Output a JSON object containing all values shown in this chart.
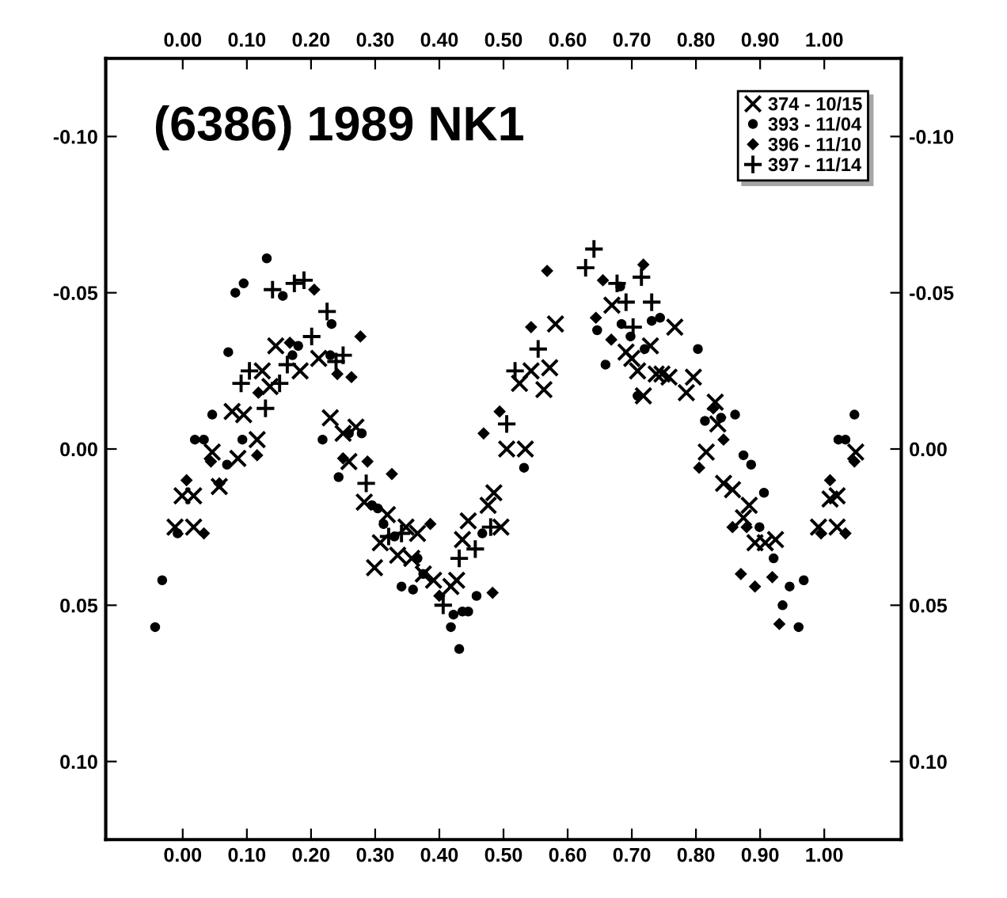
{
  "chart_data": {
    "type": "scatter",
    "title": "(6386) 1989 NK1",
    "xlim": [
      -0.12,
      1.12
    ],
    "ylim": [
      0.125,
      -0.125
    ],
    "xticks": [
      {
        "value": 0,
        "label": "0.00"
      },
      {
        "value": 0.1,
        "label": "0.10"
      },
      {
        "value": 0.2,
        "label": "0.20"
      },
      {
        "value": 0.3,
        "label": "0.30"
      },
      {
        "value": 0.4,
        "label": "0.40"
      },
      {
        "value": 0.5,
        "label": "0.50"
      },
      {
        "value": 0.6,
        "label": "0.60"
      },
      {
        "value": 0.7,
        "label": "0.70"
      },
      {
        "value": 0.8,
        "label": "0.80"
      },
      {
        "value": 0.9,
        "label": "0.90"
      },
      {
        "value": 1,
        "label": "1.00"
      }
    ],
    "x2lim": [
      -0.12,
      1.12
    ],
    "x2ticks": [
      {
        "value": 0,
        "label": "0.00"
      },
      {
        "value": 0.1,
        "label": "0.10"
      },
      {
        "value": 0.2,
        "label": "0.20"
      },
      {
        "value": 0.3,
        "label": "0.30"
      },
      {
        "value": 0.4,
        "label": "0.40"
      },
      {
        "value": 0.5,
        "label": "0.50"
      },
      {
        "value": 0.6,
        "label": "0.60"
      },
      {
        "value": 0.7,
        "label": "0.70"
      },
      {
        "value": 0.8,
        "label": "0.80"
      },
      {
        "value": 0.9,
        "label": "0.90"
      },
      {
        "value": 1,
        "label": "1.00"
      }
    ],
    "yticks": [
      {
        "value": -0.1,
        "label": "-0.10"
      },
      {
        "value": -0.05,
        "label": "-0.05"
      },
      {
        "value": 0,
        "label": "0.00"
      },
      {
        "value": 0.05,
        "label": "0.05"
      },
      {
        "value": 0.1,
        "label": "0.10"
      }
    ],
    "y2lim": [
      0.125,
      -0.125
    ],
    "y2ticks": [
      {
        "value": -0.1,
        "label": "-0.10"
      },
      {
        "value": -0.05,
        "label": "-0.05"
      },
      {
        "value": 0,
        "label": "0.00"
      },
      {
        "value": 0.05,
        "label": "0.05"
      },
      {
        "value": 0.1,
        "label": "0.10"
      }
    ],
    "grid": false,
    "legend": "top right",
    "series": [
      {
        "name": "374 - 10/15",
        "color": "#000000",
        "marker": "cross",
        "x": [
          -0.012,
          0.017,
          -0.001,
          0.017,
          0.046,
          0.057,
          0.086,
          0.077,
          0.095,
          0.116,
          0.124,
          0.136,
          0.145,
          0.183,
          0.212,
          0.23,
          0.25,
          0.259,
          0.27,
          0.283,
          0.308,
          0.319,
          0.299,
          0.335,
          0.348,
          0.366,
          0.357,
          0.375,
          0.391,
          0.418,
          0.427,
          0.436,
          0.445,
          0.476,
          0.485,
          0.496,
          0.505,
          0.534,
          0.525,
          0.543,
          0.563,
          0.572,
          0.581,
          0.669,
          0.691,
          0.7,
          0.709,
          0.718,
          0.729,
          0.738,
          0.747,
          0.758,
          0.767,
          0.785,
          0.796,
          0.816,
          0.83,
          0.834,
          0.843,
          0.857,
          0.874,
          0.883,
          0.892,
          0.908,
          0.924,
          0.991,
          1.009,
          1.02,
          1.02,
          1.049
        ],
        "values": [
          0.025,
          0.025,
          0.015,
          0.015,
          0.001,
          0.012,
          0.003,
          -0.012,
          -0.011,
          -0.003,
          -0.025,
          -0.02,
          -0.033,
          -0.025,
          -0.029,
          -0.01,
          -0.005,
          0.004,
          -0.007,
          0.017,
          0.03,
          0.021,
          0.038,
          0.034,
          0.025,
          0.027,
          0.035,
          0.04,
          0.042,
          0.044,
          0.042,
          0.029,
          0.023,
          0.018,
          0.014,
          0.025,
          0.0,
          0.0,
          -0.021,
          -0.025,
          -0.019,
          -0.026,
          -0.04,
          -0.046,
          -0.031,
          -0.029,
          -0.025,
          -0.017,
          -0.033,
          -0.024,
          -0.024,
          -0.023,
          -0.039,
          -0.018,
          -0.023,
          0.001,
          -0.015,
          -0.008,
          0.011,
          0.013,
          0.022,
          0.018,
          0.03,
          0.03,
          0.029,
          0.025,
          0.016,
          0.015,
          0.025,
          0.001
        ]
      },
      {
        "name": "393 - 11/04",
        "color": "#000000",
        "marker": "circle",
        "x": [
          -0.043,
          -0.032,
          -0.008,
          0.019,
          0.033,
          0.046,
          0.069,
          0.071,
          0.093,
          0.082,
          0.095,
          0.131,
          0.156,
          0.18,
          0.171,
          0.218,
          0.23,
          0.232,
          0.259,
          0.243,
          0.279,
          0.295,
          0.304,
          0.313,
          0.33,
          0.366,
          0.341,
          0.359,
          0.375,
          0.418,
          0.422,
          0.436,
          0.445,
          0.431,
          0.458,
          0.467,
          0.532,
          0.682,
          0.646,
          0.684,
          0.698,
          0.731,
          0.744,
          0.659,
          0.72,
          0.803,
          0.709,
          0.839,
          0.814,
          0.861,
          0.874,
          0.886,
          0.906,
          0.899,
          0.921,
          0.946,
          0.968,
          0.935,
          0.96,
          1.022,
          1.033,
          1.047
        ],
        "values": [
          0.057,
          0.042,
          0.027,
          -0.003,
          -0.003,
          -0.011,
          0.005,
          -0.031,
          -0.003,
          -0.05,
          -0.053,
          -0.061,
          -0.049,
          -0.033,
          -0.03,
          -0.003,
          -0.03,
          -0.04,
          -0.005,
          0.009,
          -0.005,
          0.018,
          0.019,
          0.024,
          0.028,
          0.035,
          0.044,
          0.045,
          0.04,
          0.057,
          0.053,
          0.052,
          0.052,
          0.064,
          0.047,
          0.027,
          0.006,
          -0.052,
          -0.038,
          -0.04,
          -0.036,
          -0.041,
          -0.042,
          -0.027,
          -0.032,
          -0.032,
          -0.017,
          -0.01,
          -0.009,
          -0.011,
          0.002,
          0.005,
          0.014,
          0.025,
          0.035,
          0.044,
          0.042,
          0.05,
          0.057,
          -0.003,
          -0.003,
          -0.011
        ]
      },
      {
        "name": "396 - 11/10",
        "color": "#000000",
        "marker": "diamond",
        "x": [
          0.033,
          0.006,
          0.044,
          0.057,
          0.116,
          0.118,
          0.167,
          0.205,
          0.241,
          0.25,
          0.263,
          0.277,
          0.288,
          0.326,
          0.386,
          0.4,
          0.483,
          0.469,
          0.494,
          0.543,
          0.554,
          0.568,
          0.655,
          0.718,
          0.644,
          0.668,
          0.827,
          0.843,
          0.805,
          0.857,
          0.879,
          0.87,
          0.892,
          0.919,
          0.93,
          0.995,
          1.033,
          1.009,
          1.047
        ],
        "values": [
          0.027,
          0.01,
          0.004,
          0.011,
          0.002,
          -0.018,
          -0.034,
          -0.051,
          -0.024,
          0.003,
          -0.023,
          -0.036,
          0.004,
          0.008,
          0.024,
          0.047,
          0.046,
          -0.005,
          -0.012,
          -0.039,
          null,
          -0.057,
          -0.054,
          -0.059,
          -0.042,
          -0.035,
          -0.013,
          -0.003,
          0.006,
          0.025,
          0.025,
          0.04,
          0.044,
          0.041,
          0.056,
          0.027,
          0.027,
          0.01,
          0.004
        ]
      },
      {
        "name": "397 - 11/14",
        "color": "#000000",
        "marker": "plus",
        "x": [
          0.091,
          0.104,
          0.129,
          0.14,
          0.151,
          0.163,
          0.174,
          0.189,
          0.201,
          0.225,
          0.239,
          0.25,
          0.286,
          0.321,
          0.341,
          0.406,
          0.431,
          0.456,
          0.48,
          0.505,
          0.518,
          0.554,
          0.641,
          0.628,
          0.677,
          0.715,
          0.691,
          0.731,
          0.702
        ],
        "values": [
          -0.021,
          -0.025,
          -0.013,
          -0.051,
          -0.021,
          -0.027,
          -0.053,
          -0.054,
          -0.036,
          -0.044,
          -0.028,
          -0.03,
          0.011,
          0.028,
          0.027,
          0.05,
          0.035,
          0.032,
          0.025,
          -0.008,
          -0.025,
          -0.032,
          -0.064,
          -0.058,
          -0.053,
          -0.055,
          -0.047,
          -0.047,
          -0.039
        ]
      }
    ]
  }
}
